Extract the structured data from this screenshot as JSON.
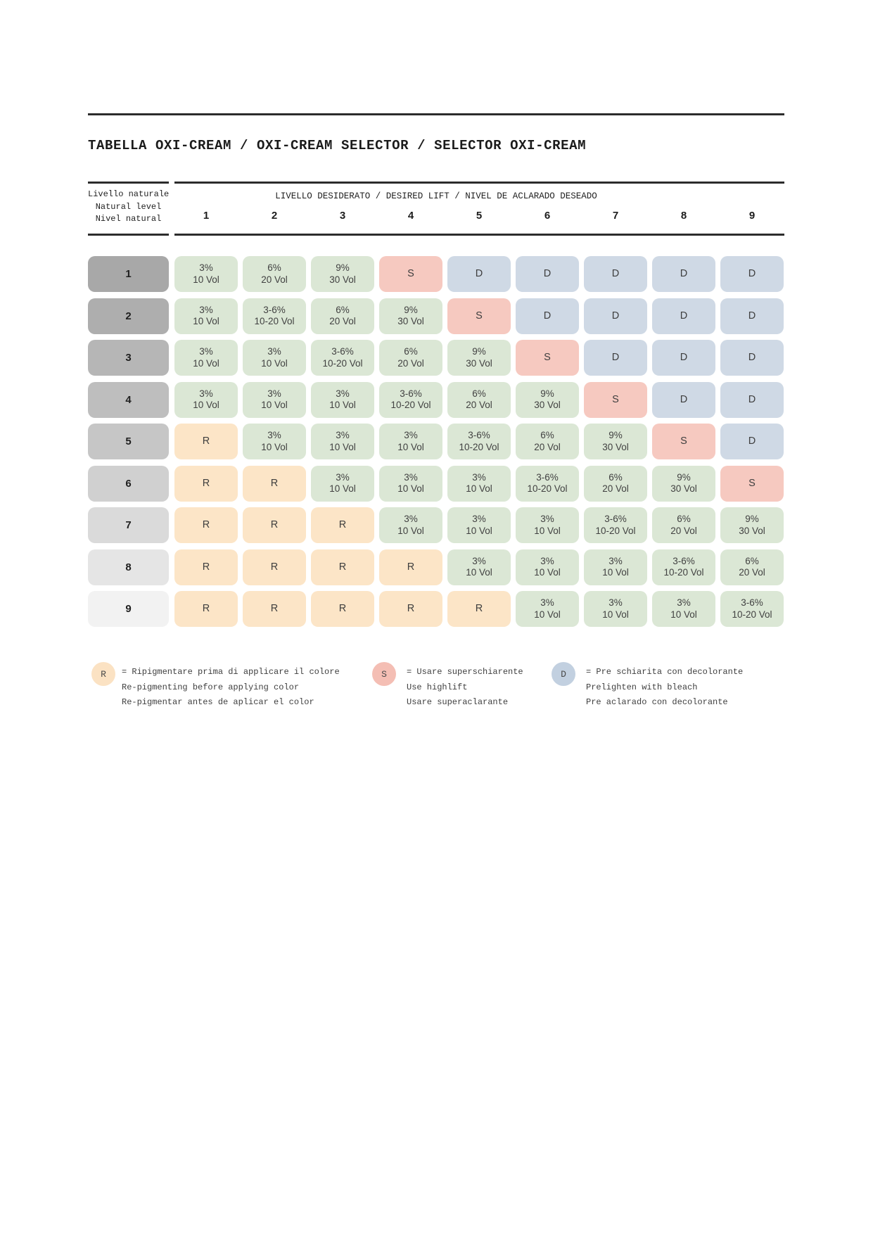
{
  "title": "TABELLA OXI-CREAM / OXI-CREAM SELECTOR / SELECTOR OXI-CREAM",
  "header": {
    "row_axis_lines": [
      "Livello naturale",
      "Natural level",
      "Nivel natural"
    ],
    "col_axis_label": "LIVELLO DESIDERATO / DESIRED LIFT / NIVEL DE ACLARADO DESEADO",
    "columns": [
      "1",
      "2",
      "3",
      "4",
      "5",
      "6",
      "7",
      "8",
      "9"
    ]
  },
  "colors": {
    "cell_types": {
      "lift": "#dbe7d5",
      "R": "#fce5c7",
      "S": "#f6c9c0",
      "D": "#cfd9e5"
    },
    "rule": "#2c2c2c"
  },
  "chart_data": {
    "type": "table",
    "columns": [
      "1",
      "2",
      "3",
      "4",
      "5",
      "6",
      "7",
      "8",
      "9"
    ],
    "rows": [
      {
        "level": "1",
        "level_color": "#a8a8a8",
        "cells": [
          {
            "type": "lift",
            "lines": [
              "3%",
              "10 Vol"
            ]
          },
          {
            "type": "lift",
            "lines": [
              "6%",
              "20 Vol"
            ]
          },
          {
            "type": "lift",
            "lines": [
              "9%",
              "30 Vol"
            ]
          },
          {
            "type": "S",
            "lines": [
              "S"
            ]
          },
          {
            "type": "D",
            "lines": [
              "D"
            ]
          },
          {
            "type": "D",
            "lines": [
              "D"
            ]
          },
          {
            "type": "D",
            "lines": [
              "D"
            ]
          },
          {
            "type": "D",
            "lines": [
              "D"
            ]
          },
          {
            "type": "D",
            "lines": [
              "D"
            ]
          }
        ]
      },
      {
        "level": "2",
        "level_color": "#aeaeae",
        "cells": [
          {
            "type": "lift",
            "lines": [
              "3%",
              "10 Vol"
            ]
          },
          {
            "type": "lift",
            "lines": [
              "3-6%",
              "10-20 Vol"
            ]
          },
          {
            "type": "lift",
            "lines": [
              "6%",
              "20 Vol"
            ]
          },
          {
            "type": "lift",
            "lines": [
              "9%",
              "30 Vol"
            ]
          },
          {
            "type": "S",
            "lines": [
              "S"
            ]
          },
          {
            "type": "D",
            "lines": [
              "D"
            ]
          },
          {
            "type": "D",
            "lines": [
              "D"
            ]
          },
          {
            "type": "D",
            "lines": [
              "D"
            ]
          },
          {
            "type": "D",
            "lines": [
              "D"
            ]
          }
        ]
      },
      {
        "level": "3",
        "level_color": "#b6b6b6",
        "cells": [
          {
            "type": "lift",
            "lines": [
              "3%",
              "10 Vol"
            ]
          },
          {
            "type": "lift",
            "lines": [
              "3%",
              "10 Vol"
            ]
          },
          {
            "type": "lift",
            "lines": [
              "3-6%",
              "10-20 Vol"
            ]
          },
          {
            "type": "lift",
            "lines": [
              "6%",
              "20 Vol"
            ]
          },
          {
            "type": "lift",
            "lines": [
              "9%",
              "30 Vol"
            ]
          },
          {
            "type": "S",
            "lines": [
              "S"
            ]
          },
          {
            "type": "D",
            "lines": [
              "D"
            ]
          },
          {
            "type": "D",
            "lines": [
              "D"
            ]
          },
          {
            "type": "D",
            "lines": [
              "D"
            ]
          }
        ]
      },
      {
        "level": "4",
        "level_color": "#bebebe",
        "cells": [
          {
            "type": "lift",
            "lines": [
              "3%",
              "10 Vol"
            ]
          },
          {
            "type": "lift",
            "lines": [
              "3%",
              "10 Vol"
            ]
          },
          {
            "type": "lift",
            "lines": [
              "3%",
              "10 Vol"
            ]
          },
          {
            "type": "lift",
            "lines": [
              "3-6%",
              "10-20 Vol"
            ]
          },
          {
            "type": "lift",
            "lines": [
              "6%",
              "20 Vol"
            ]
          },
          {
            "type": "lift",
            "lines": [
              "9%",
              "30 Vol"
            ]
          },
          {
            "type": "S",
            "lines": [
              "S"
            ]
          },
          {
            "type": "D",
            "lines": [
              "D"
            ]
          },
          {
            "type": "D",
            "lines": [
              "D"
            ]
          }
        ]
      },
      {
        "level": "5",
        "level_color": "#c6c6c6",
        "cells": [
          {
            "type": "R",
            "lines": [
              "R"
            ]
          },
          {
            "type": "lift",
            "lines": [
              "3%",
              "10 Vol"
            ]
          },
          {
            "type": "lift",
            "lines": [
              "3%",
              "10 Vol"
            ]
          },
          {
            "type": "lift",
            "lines": [
              "3%",
              "10 Vol"
            ]
          },
          {
            "type": "lift",
            "lines": [
              "3-6%",
              "10-20 Vol"
            ]
          },
          {
            "type": "lift",
            "lines": [
              "6%",
              "20 Vol"
            ]
          },
          {
            "type": "lift",
            "lines": [
              "9%",
              "30 Vol"
            ]
          },
          {
            "type": "S",
            "lines": [
              "S"
            ]
          },
          {
            "type": "D",
            "lines": [
              "D"
            ]
          }
        ]
      },
      {
        "level": "6",
        "level_color": "#d0d0d0",
        "cells": [
          {
            "type": "R",
            "lines": [
              "R"
            ]
          },
          {
            "type": "R",
            "lines": [
              "R"
            ]
          },
          {
            "type": "lift",
            "lines": [
              "3%",
              "10 Vol"
            ]
          },
          {
            "type": "lift",
            "lines": [
              "3%",
              "10 Vol"
            ]
          },
          {
            "type": "lift",
            "lines": [
              "3%",
              "10 Vol"
            ]
          },
          {
            "type": "lift",
            "lines": [
              "3-6%",
              "10-20 Vol"
            ]
          },
          {
            "type": "lift",
            "lines": [
              "6%",
              "20 Vol"
            ]
          },
          {
            "type": "lift",
            "lines": [
              "9%",
              "30 Vol"
            ]
          },
          {
            "type": "S",
            "lines": [
              "S"
            ]
          }
        ]
      },
      {
        "level": "7",
        "level_color": "#dadada",
        "cells": [
          {
            "type": "R",
            "lines": [
              "R"
            ]
          },
          {
            "type": "R",
            "lines": [
              "R"
            ]
          },
          {
            "type": "R",
            "lines": [
              "R"
            ]
          },
          {
            "type": "lift",
            "lines": [
              "3%",
              "10 Vol"
            ]
          },
          {
            "type": "lift",
            "lines": [
              "3%",
              "10 Vol"
            ]
          },
          {
            "type": "lift",
            "lines": [
              "3%",
              "10 Vol"
            ]
          },
          {
            "type": "lift",
            "lines": [
              "3-6%",
              "10-20 Vol"
            ]
          },
          {
            "type": "lift",
            "lines": [
              "6%",
              "20 Vol"
            ]
          },
          {
            "type": "lift",
            "lines": [
              "9%",
              "30 Vol"
            ]
          }
        ]
      },
      {
        "level": "8",
        "level_color": "#e5e5e5",
        "cells": [
          {
            "type": "R",
            "lines": [
              "R"
            ]
          },
          {
            "type": "R",
            "lines": [
              "R"
            ]
          },
          {
            "type": "R",
            "lines": [
              "R"
            ]
          },
          {
            "type": "R",
            "lines": [
              "R"
            ]
          },
          {
            "type": "lift",
            "lines": [
              "3%",
              "10 Vol"
            ]
          },
          {
            "type": "lift",
            "lines": [
              "3%",
              "10 Vol"
            ]
          },
          {
            "type": "lift",
            "lines": [
              "3%",
              "10 Vol"
            ]
          },
          {
            "type": "lift",
            "lines": [
              "3-6%",
              "10-20 Vol"
            ]
          },
          {
            "type": "lift",
            "lines": [
              "6%",
              "20 Vol"
            ]
          }
        ]
      },
      {
        "level": "9",
        "level_color": "#f2f2f2",
        "cells": [
          {
            "type": "R",
            "lines": [
              "R"
            ]
          },
          {
            "type": "R",
            "lines": [
              "R"
            ]
          },
          {
            "type": "R",
            "lines": [
              "R"
            ]
          },
          {
            "type": "R",
            "lines": [
              "R"
            ]
          },
          {
            "type": "R",
            "lines": [
              "R"
            ]
          },
          {
            "type": "lift",
            "lines": [
              "3%",
              "10 Vol"
            ]
          },
          {
            "type": "lift",
            "lines": [
              "3%",
              "10 Vol"
            ]
          },
          {
            "type": "lift",
            "lines": [
              "3%",
              "10 Vol"
            ]
          },
          {
            "type": "lift",
            "lines": [
              "3-6%",
              "10-20 Vol"
            ]
          }
        ]
      }
    ]
  },
  "legend": {
    "items": [
      {
        "symbol": "R",
        "color": "#fbe2c3",
        "lines": [
          "= Ripigmentare prima di applicare il colore",
          "Re-pigmenting before applying color",
          "Re-pigmentar antes de aplicar el color"
        ]
      },
      {
        "symbol": "S",
        "color": "#f4beb4",
        "lines": [
          "= Usare superschiarente",
          "Use highlift",
          "Usare superaclarante"
        ]
      },
      {
        "symbol": "D",
        "color": "#c2d0e0",
        "lines": [
          "= Pre schiarita con decolorante",
          "Prelighten with bleach",
          "Pre aclarado con decolorante"
        ]
      }
    ]
  }
}
